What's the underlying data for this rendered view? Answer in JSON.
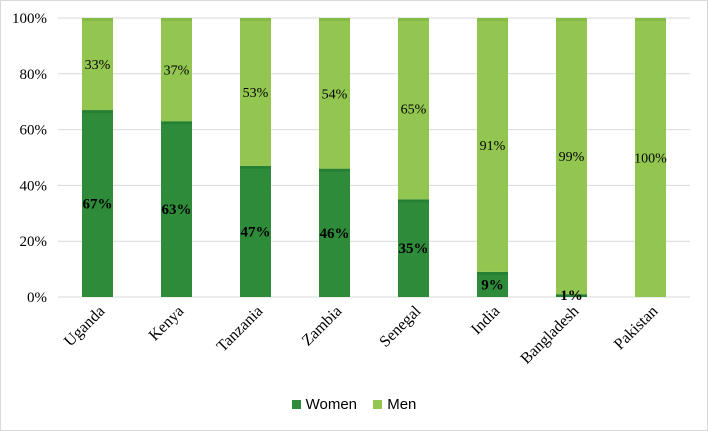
{
  "chart_data": {
    "type": "bar",
    "stacked": true,
    "categories": [
      "Uganda",
      "Kenya",
      "Tanzania",
      "Zambia",
      "Senegal",
      "India",
      "Bangladesh",
      "Pakistan"
    ],
    "series": [
      {
        "name": "Women",
        "values": [
          67,
          63,
          47,
          46,
          35,
          9,
          1,
          0
        ],
        "labels": [
          "67%",
          "63%",
          "47%",
          "46%",
          "35%",
          "9%",
          "1%",
          ""
        ],
        "color": "#2e8b3a"
      },
      {
        "name": "Men",
        "values": [
          33,
          37,
          53,
          54,
          65,
          91,
          99,
          100
        ],
        "labels": [
          "33%",
          "37%",
          "53%",
          "54%",
          "65%",
          "91%",
          "99%",
          "100%"
        ],
        "color": "#92c650"
      }
    ],
    "ylim": [
      0,
      100
    ],
    "yticks": [
      "0%",
      "20%",
      "40%",
      "60%",
      "80%",
      "100%"
    ],
    "grid": true,
    "legend": "bottom"
  }
}
